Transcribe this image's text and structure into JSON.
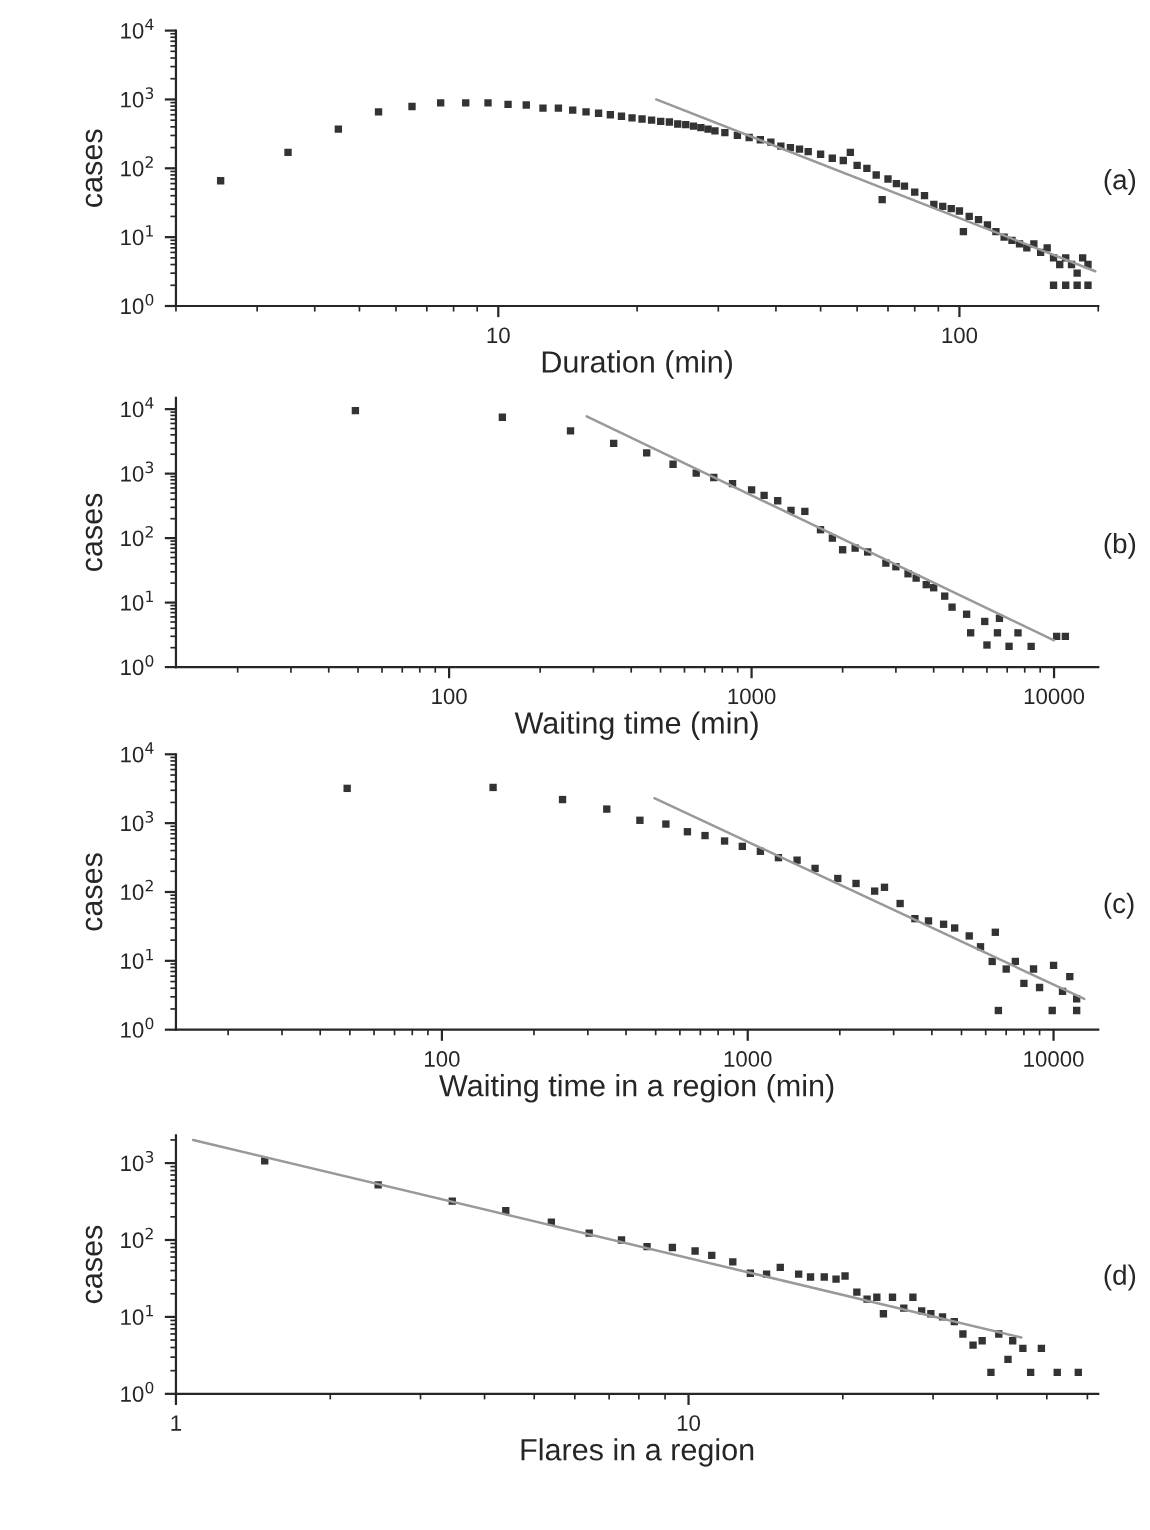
{
  "chart_data": [
    {
      "type": "scatter",
      "xlabel": "Duration (min)",
      "ylabel": "cases",
      "annotations": [
        "(a)"
      ],
      "log": "xy",
      "marker": "square",
      "xlim": [
        2,
        200
      ],
      "ylim": [
        1,
        10000
      ],
      "xticks": [
        10,
        100
      ],
      "yticks": [
        {
          "value": 1,
          "label": "10$^{0}$"
        },
        {
          "value": 10,
          "label": "10$^{1}$"
        },
        {
          "value": 100,
          "label": "10$^{2}$"
        },
        {
          "value": 1000,
          "label": "10$^{3}$"
        },
        {
          "value": 10000,
          "label": "10$^{4}$"
        }
      ],
      "series": [
        {
          "color": "#333333",
          "x": [
            2.5,
            3.5,
            4.5,
            5.5,
            6.5,
            7.5,
            8.5,
            9.5,
            10.5,
            11.5,
            12.5,
            13.5,
            14.5,
            15.5,
            16.5,
            17.5,
            18.5,
            19.5,
            20.5,
            21.5,
            22.5,
            23.5,
            24.5,
            25.5,
            26.5,
            27.5,
            28.5,
            29.5,
            31,
            33,
            35,
            37,
            39,
            41,
            43,
            45,
            47,
            50,
            53,
            56,
            58,
            60,
            63,
            66,
            68,
            70,
            73,
            76,
            80,
            84,
            88,
            92,
            96,
            100,
            102,
            105,
            110,
            115,
            120,
            125,
            130,
            135,
            140,
            145,
            150,
            155,
            160,
            165,
            170,
            175,
            180,
            185,
            190,
            160,
            170,
            180,
            190
          ],
          "values": [
            66,
            170,
            370,
            660,
            790,
            890,
            890,
            890,
            850,
            830,
            750,
            750,
            700,
            660,
            630,
            600,
            570,
            540,
            520,
            500,
            480,
            470,
            440,
            430,
            410,
            390,
            370,
            350,
            330,
            300,
            280,
            260,
            240,
            210,
            200,
            190,
            175,
            160,
            140,
            130,
            170,
            110,
            100,
            80,
            35,
            70,
            60,
            55,
            45,
            40,
            30,
            28,
            26,
            24,
            12,
            20,
            18,
            15,
            12,
            10,
            9,
            8,
            7,
            8,
            6,
            7,
            5,
            4,
            5,
            4,
            3,
            5,
            4,
            2,
            2,
            2,
            2
          ]
        },
        {
          "type": "line",
          "marker": "none",
          "color": "#999999",
          "x": [
            22,
            197
          ],
          "values": [
            1000,
            3.2
          ]
        }
      ]
    },
    {
      "type": "scatter",
      "xlabel": "Waiting time (min)",
      "ylabel": "cases",
      "annotations": [
        "(b)"
      ],
      "log": "xy",
      "marker": "square",
      "xlim": [
        12.5,
        14000
      ],
      "ylim": [
        1,
        15000
      ],
      "xticks": [
        100,
        1000,
        10000
      ],
      "yticks": [
        {
          "value": 1,
          "label": "10$^{0}$"
        },
        {
          "value": 10,
          "label": "10$^{1}$"
        },
        {
          "value": 100,
          "label": "10$^{2}$"
        },
        {
          "value": 1000,
          "label": "10$^{3}$"
        },
        {
          "value": 10000,
          "label": "10$^{4}$"
        }
      ],
      "series": [
        {
          "color": "#333333",
          "x": [
            49,
            150,
            252,
            350,
            450,
            550,
            656,
            750,
            865,
            1000,
            1100,
            1220,
            1350,
            1500,
            1690,
            1850,
            2000,
            2200,
            2420,
            2780,
            3000,
            3290,
            3500,
            3780,
            4000,
            4350,
            4600,
            5140,
            5300,
            5900,
            6000,
            6500,
            6600,
            7100,
            7600,
            8400,
            10200,
            10900
          ],
          "values": [
            9500,
            7500,
            4600,
            2950,
            2100,
            1400,
            1020,
            870,
            700,
            560,
            460,
            380,
            270,
            260,
            135,
            100,
            66,
            70,
            61,
            41,
            36,
            28,
            24,
            19,
            17,
            12.6,
            8.5,
            6.6,
            3.4,
            5.1,
            2.2,
            3.4,
            5.7,
            2.1,
            3.4,
            2.1,
            3,
            3
          ]
        },
        {
          "type": "line",
          "marker": "none",
          "color": "#999999",
          "x": [
            285,
            10000
          ],
          "values": [
            7750,
            2.6
          ]
        }
      ]
    },
    {
      "type": "scatter",
      "xlabel": "Waiting time in a region (min)",
      "ylabel": "cases",
      "annotations": [
        "(c)"
      ],
      "log": "xy",
      "marker": "square",
      "xlim": [
        13.5,
        14000
      ],
      "ylim": [
        1,
        10000
      ],
      "xticks": [
        100,
        1000,
        10000
      ],
      "yticks": [
        {
          "value": 1,
          "label": "10$^{0}$"
        },
        {
          "value": 10,
          "label": "10$^{1}$"
        },
        {
          "value": 100,
          "label": "10$^{2}$"
        },
        {
          "value": 1000,
          "label": "10$^{3}$"
        },
        {
          "value": 10000,
          "label": "10$^{4}$"
        }
      ],
      "series": [
        {
          "color": "#333333",
          "x": [
            49,
            147,
            248,
            346,
            444,
            540,
            635,
            725,
            840,
            960,
            1100,
            1260,
            1450,
            1660,
            1970,
            2260,
            2600,
            2800,
            3150,
            3520,
            3900,
            4370,
            4750,
            5300,
            5770,
            6450,
            6300,
            7000,
            7500,
            8000,
            6600,
            8600,
            9000,
            10000,
            10700,
            11300,
            11900,
            11900,
            9900
          ],
          "values": [
            3200,
            3300,
            2200,
            1600,
            1100,
            970,
            750,
            660,
            550,
            460,
            390,
            315,
            290,
            220,
            157,
            133,
            103,
            117,
            68,
            41,
            38,
            34,
            30,
            23,
            16,
            26,
            9.8,
            7.6,
            9.8,
            4.7,
            1.9,
            7.6,
            4.1,
            8.6,
            3.6,
            5.9,
            2.8,
            1.9,
            1.9
          ]
        },
        {
          "type": "line",
          "marker": "none",
          "color": "#999999",
          "x": [
            495,
            12600
          ],
          "values": [
            2300,
            2.8
          ]
        }
      ]
    },
    {
      "type": "scatter",
      "xlabel": "Flares in a region",
      "ylabel": "cases",
      "annotations": [
        "(d)"
      ],
      "log": "xy",
      "marker": "square",
      "xlim": [
        1,
        63
      ],
      "ylim": [
        1,
        2300
      ],
      "xticks": [
        1,
        10
      ],
      "yticks": [
        {
          "value": 1,
          "label": "10$^{0}$"
        },
        {
          "value": 10,
          "label": "10$^{1}$"
        },
        {
          "value": 100,
          "label": "10$^{2}$"
        },
        {
          "value": 1000,
          "label": "10$^{3}$"
        }
      ],
      "series": [
        {
          "color": "#333333",
          "x": [
            1.49,
            2.48,
            3.46,
            4.4,
            5.4,
            6.4,
            7.4,
            8.3,
            9.3,
            10.3,
            11.1,
            12.2,
            13.2,
            14.2,
            15.1,
            16.4,
            17.3,
            18.4,
            19.4,
            20.2,
            21.3,
            22.3,
            23.3,
            24,
            25,
            26.3,
            27.4,
            28.5,
            29.7,
            31.3,
            33,
            34.3,
            35.9,
            37.4,
            38.9,
            40.3,
            42,
            42.9,
            44.9,
            46.5,
            48.8,
            52.4,
            57.6
          ],
          "values": [
            1070,
            520,
            320,
            240,
            170,
            123,
            100,
            82,
            80,
            72,
            63,
            52,
            37,
            36,
            44,
            36,
            33,
            33,
            31,
            34,
            21,
            17,
            18,
            11,
            18,
            13,
            18,
            12,
            11,
            10,
            8.7,
            6,
            4.3,
            4.9,
            1.9,
            6,
            2.8,
            4.9,
            3.9,
            1.9,
            3.9,
            1.9,
            1.9
          ]
        },
        {
          "type": "line",
          "marker": "none",
          "color": "#999999",
          "x": [
            1.08,
            44.6
          ],
          "values": [
            2000,
            5.4
          ]
        }
      ]
    }
  ]
}
